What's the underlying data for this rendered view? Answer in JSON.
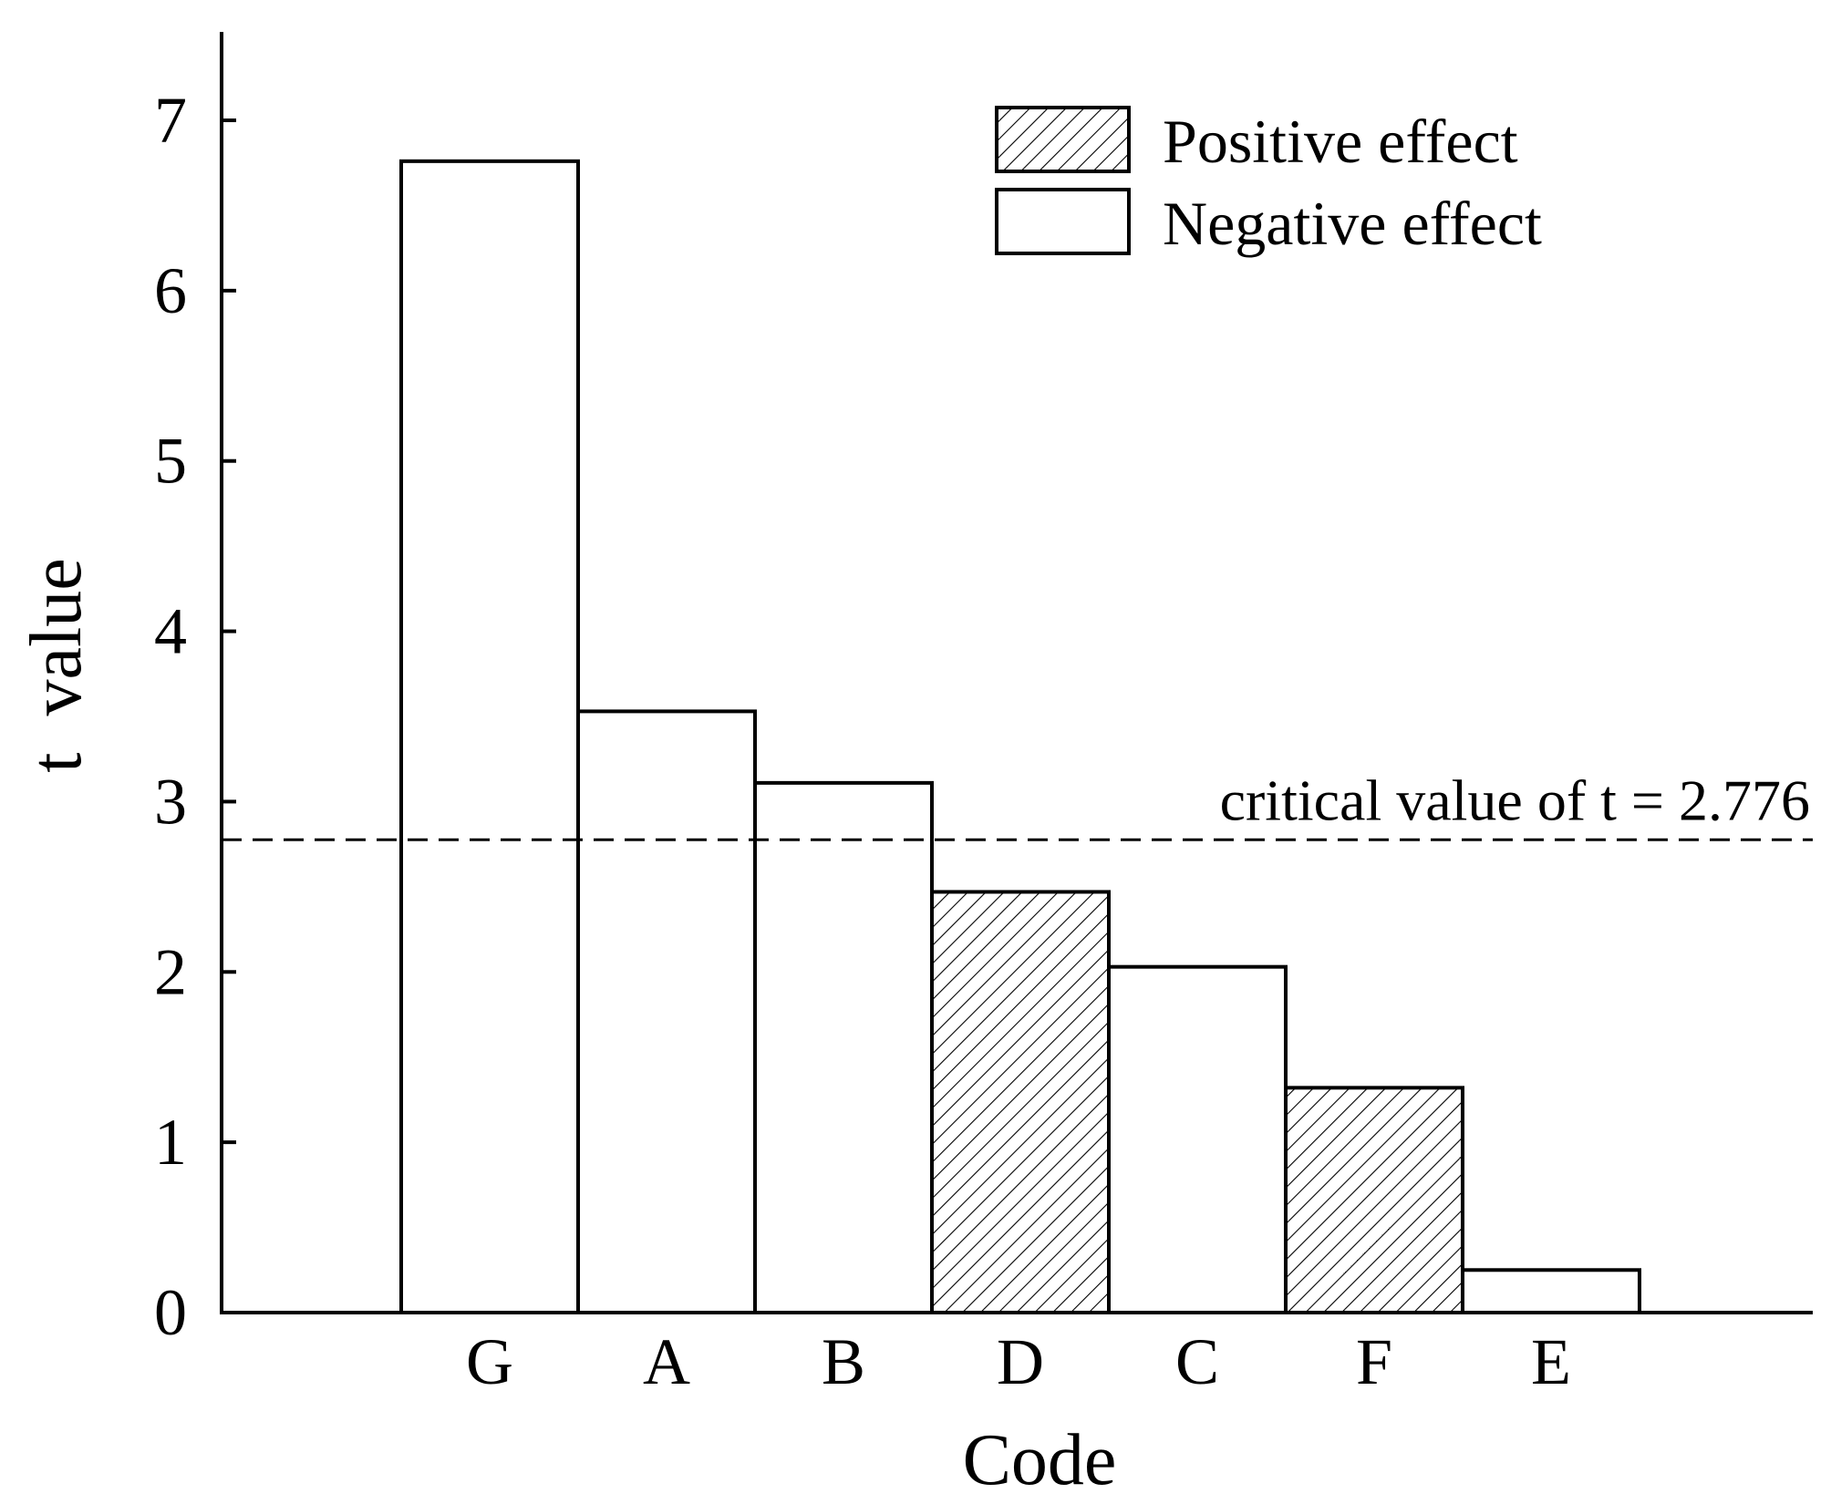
{
  "chart_data": {
    "type": "bar",
    "title": "",
    "xlabel": "Code",
    "ylabel": "t  value",
    "categories": [
      "G",
      "A",
      "B",
      "D",
      "C",
      "F",
      "E"
    ],
    "values": [
      6.76,
      3.53,
      3.11,
      2.47,
      2.03,
      1.32,
      0.25
    ],
    "effect": [
      "negative",
      "negative",
      "negative",
      "positive",
      "negative",
      "positive",
      "negative"
    ],
    "ylim": [
      0,
      7.5
    ],
    "yticks": [
      "0",
      "1",
      "2",
      "3",
      "4",
      "5",
      "6",
      "7"
    ],
    "grid": false,
    "critical_value": 2.776,
    "critical_label": "critical value of t = 2.776",
    "legend": {
      "placement": "top-right",
      "items": [
        {
          "key": "positive",
          "label": "Positive effect",
          "fill": "hatched"
        },
        {
          "key": "negative",
          "label": "Negative effect",
          "fill": "none"
        }
      ]
    },
    "colors": {
      "stroke": "#000000",
      "background": "#ffffff"
    }
  }
}
